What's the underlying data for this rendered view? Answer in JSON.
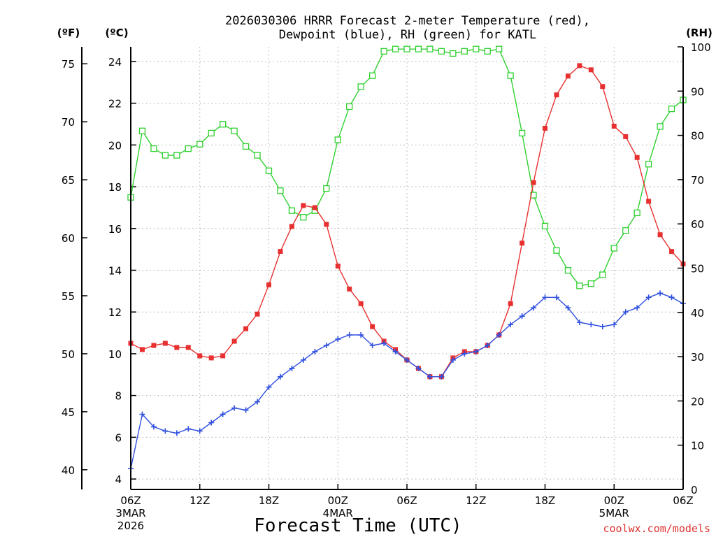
{
  "chart_data": {
    "type": "line",
    "title_line1": "2026030306 HRRR Forecast 2-meter Temperature (red),",
    "title_line2": "Dewpoint (blue), RH (green) for KATL",
    "xlabel": "Forecast Time (UTC)",
    "credit": "coolwx.com/models",
    "units": {
      "fahrenheit": "(ºF)",
      "celsius": "(ºC)",
      "rh": "(RH)"
    },
    "forecast_hours": [
      0,
      1,
      2,
      3,
      4,
      5,
      6,
      7,
      8,
      9,
      10,
      11,
      12,
      13,
      14,
      15,
      16,
      17,
      18,
      19,
      20,
      21,
      22,
      23,
      24,
      25,
      26,
      27,
      28,
      29,
      30,
      31,
      32,
      33,
      34,
      35,
      36,
      37,
      38,
      39,
      40,
      41,
      42,
      43,
      44,
      45,
      46,
      47,
      48
    ],
    "xlim": [
      0,
      48
    ],
    "x_ticks": [
      {
        "hour": 0,
        "label": "06Z",
        "sub1": "3MAR",
        "sub2": "2026"
      },
      {
        "hour": 6,
        "label": "12Z",
        "sub1": "",
        "sub2": ""
      },
      {
        "hour": 12,
        "label": "18Z",
        "sub1": "",
        "sub2": ""
      },
      {
        "hour": 18,
        "label": "00Z",
        "sub1": "4MAR",
        "sub2": ""
      },
      {
        "hour": 24,
        "label": "06Z",
        "sub1": "",
        "sub2": ""
      },
      {
        "hour": 30,
        "label": "12Z",
        "sub1": "",
        "sub2": ""
      },
      {
        "hour": 36,
        "label": "18Z",
        "sub1": "",
        "sub2": ""
      },
      {
        "hour": 42,
        "label": "00Z",
        "sub1": "5MAR",
        "sub2": ""
      },
      {
        "hour": 48,
        "label": "06Z",
        "sub1": "",
        "sub2": ""
      }
    ],
    "y_celsius": {
      "ylim": [
        3.5,
        24.7
      ],
      "ticks": [
        4,
        6,
        8,
        10,
        12,
        14,
        16,
        18,
        20,
        22,
        24
      ]
    },
    "y_fahrenheit": {
      "ticks": [
        40,
        45,
        50,
        55,
        60,
        65,
        70,
        75
      ]
    },
    "y_rh": {
      "ylim": [
        0,
        100
      ],
      "ticks": [
        0,
        10,
        20,
        30,
        40,
        50,
        60,
        70,
        80,
        90,
        100
      ]
    },
    "series": [
      {
        "name": "Temperature",
        "axis": "celsius",
        "color": "#e83030",
        "marker": "filled-square",
        "values": [
          10.5,
          10.2,
          10.4,
          10.5,
          10.3,
          10.3,
          9.9,
          9.8,
          9.9,
          10.6,
          11.2,
          11.9,
          13.3,
          14.9,
          16.1,
          17.1,
          17.0,
          16.2,
          14.2,
          13.1,
          12.4,
          11.3,
          10.6,
          10.2,
          9.7,
          9.3,
          8.9,
          8.9,
          9.8,
          10.1,
          10.1,
          10.4,
          10.9,
          12.4,
          15.3,
          18.2,
          20.8,
          22.4,
          23.3,
          23.8,
          23.6,
          22.8,
          20.9,
          20.4,
          19.4,
          17.3,
          15.7,
          14.9,
          14.3
        ]
      },
      {
        "name": "Dewpoint",
        "axis": "celsius",
        "color": "#3050e0",
        "marker": "plus",
        "values": [
          4.5,
          7.1,
          6.5,
          6.3,
          6.2,
          6.4,
          6.3,
          6.7,
          7.1,
          7.4,
          7.3,
          7.7,
          8.4,
          8.9,
          9.3,
          9.7,
          10.1,
          10.4,
          10.7,
          10.9,
          10.9,
          10.4,
          10.5,
          10.1,
          9.7,
          9.3,
          8.9,
          8.9,
          9.7,
          10.0,
          10.1,
          10.4,
          10.9,
          11.4,
          11.8,
          12.2,
          12.7,
          12.7,
          12.2,
          11.5,
          11.4,
          11.3,
          11.4,
          12.0,
          12.2,
          12.7,
          12.9,
          12.7,
          12.4
        ]
      },
      {
        "name": "RH",
        "axis": "rh",
        "color": "#30d030",
        "marker": "open-square",
        "values": [
          66,
          81,
          77,
          75.5,
          75.5,
          77,
          78,
          80.5,
          82.5,
          81,
          77.5,
          75.5,
          72,
          67.5,
          63,
          61.5,
          63,
          68,
          79,
          86.5,
          91,
          93.5,
          99,
          99.5,
          99.5,
          99.5,
          99.5,
          99,
          98.5,
          99,
          99.5,
          99,
          99.5,
          93.5,
          80.5,
          66.5,
          59.5,
          54,
          49.5,
          46,
          46.5,
          48.5,
          54.5,
          58.5,
          62.5,
          73.5,
          82,
          86,
          88
        ]
      }
    ]
  }
}
